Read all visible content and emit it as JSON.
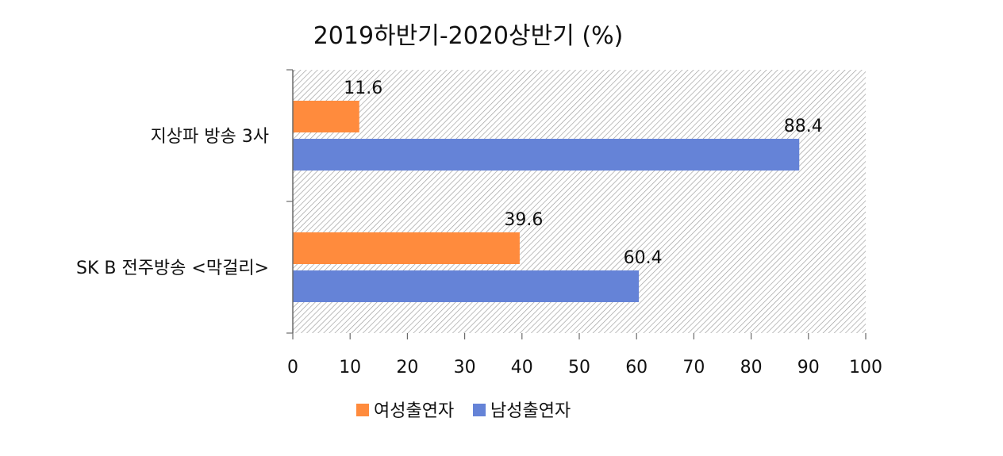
{
  "chart_data": {
    "type": "bar",
    "orientation": "horizontal",
    "title": "2019하반기-2020상반기 (%)",
    "categories": [
      "지상파 방송 3사",
      "SK B 전주방송 <막걸리>"
    ],
    "series": [
      {
        "name": "여성출연자",
        "color": "#ff8b3d",
        "values": [
          11.6,
          39.6
        ]
      },
      {
        "name": "남성출연자",
        "color": "#6583d7",
        "values": [
          88.4,
          60.4
        ]
      }
    ],
    "xlim": [
      0,
      100
    ],
    "xticks": [
      "0",
      "10",
      "20",
      "30",
      "40",
      "50",
      "60",
      "70",
      "80",
      "90",
      "100"
    ],
    "xlabel": "",
    "ylabel": "",
    "grid": false,
    "legend_position": "bottom",
    "plot_background": "diagonal-hatch"
  }
}
